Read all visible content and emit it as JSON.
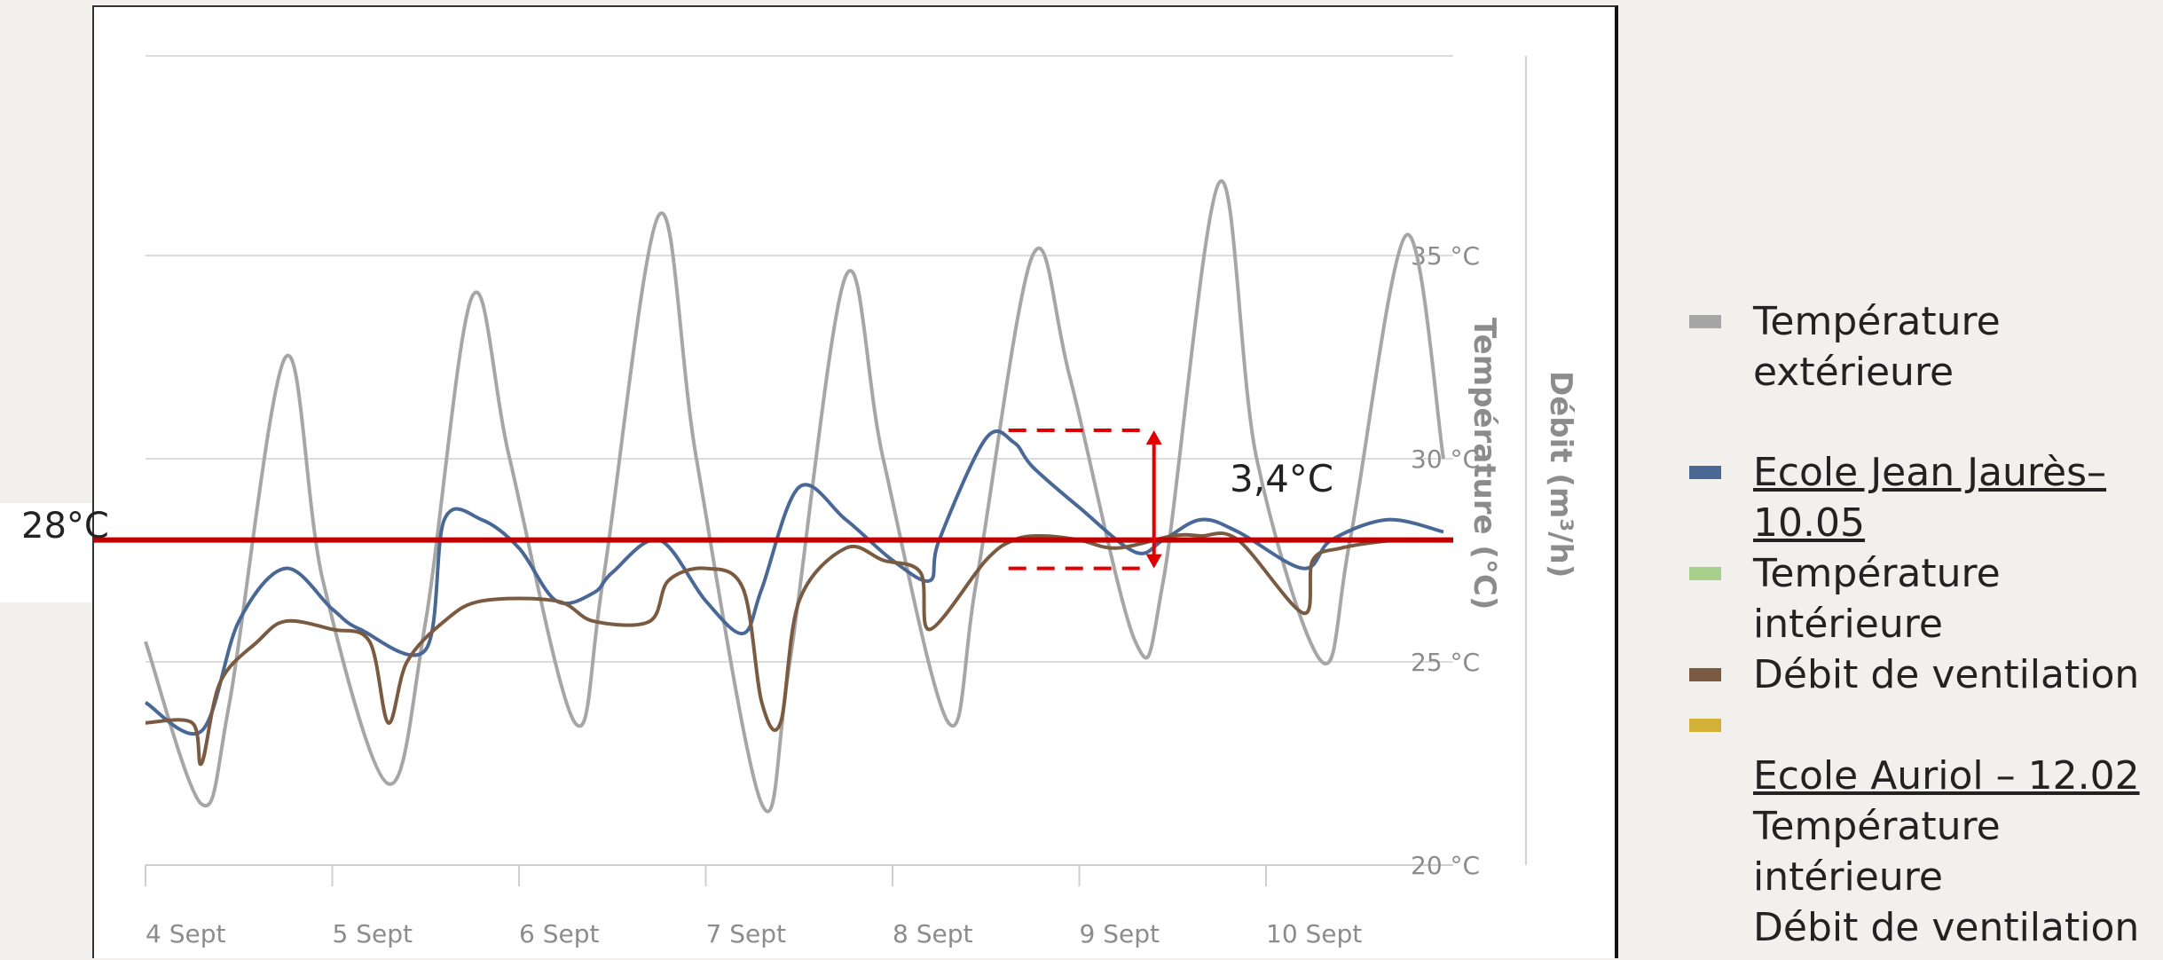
{
  "chart_data": {
    "type": "line",
    "title": "",
    "xlabel": "",
    "ylabel": "Température (°C)",
    "y2label": "Débit (m³/h)",
    "x_range": [
      "4 Sept",
      "10 Sept"
    ],
    "ylim": [
      20,
      39
    ],
    "grid": true,
    "x_ticks": [
      "4 Sept",
      "5 Sept",
      "6 Sept",
      "7 Sept",
      "8 Sept",
      "9 Sept",
      "10 Sept"
    ],
    "y_ticks": [
      {
        "value": 35,
        "label": "35 °C"
      },
      {
        "value": 30,
        "label": "30 °C"
      },
      {
        "value": 25,
        "label": "25 °C"
      },
      {
        "value": 20,
        "label": "20 °C"
      }
    ],
    "reference_line": {
      "value": 28,
      "label": "28°C",
      "color": "#c00000"
    },
    "annotation": {
      "label": "3,4°C",
      "from": 27.3,
      "to": 30.7,
      "x": 5.4,
      "color": "#e00000"
    },
    "series": [
      {
        "color": "#a6a6a6",
        "x": [
          0,
          0.3,
          0.45,
          0.75,
          0.95,
          1.3,
          1.5,
          1.75,
          1.95,
          2.3,
          2.45,
          2.75,
          2.95,
          3.3,
          3.45,
          3.75,
          3.95,
          4.3,
          4.45,
          4.75,
          4.95,
          5.3,
          5.45,
          5.75,
          5.95,
          6.3,
          6.45,
          6.75,
          6.95
        ],
        "y": [
          25.5,
          21.5,
          24,
          32.5,
          27,
          22,
          26,
          34,
          30,
          23.5,
          27,
          36,
          30,
          21.5,
          25,
          34.5,
          30,
          23.5,
          27,
          35,
          32,
          25.5,
          27,
          36.8,
          30,
          25,
          28,
          35.5,
          30
        ]
      },
      {
        "color": "#4a6896",
        "x": [
          0,
          0.3,
          0.5,
          0.75,
          1,
          1.15,
          1.5,
          1.6,
          1.8,
          2,
          2.2,
          2.4,
          2.5,
          2.75,
          3,
          3.2,
          3.3,
          3.5,
          3.75,
          4,
          4.2,
          4.25,
          4.5,
          4.65,
          4.75,
          5,
          5.3,
          5.45,
          5.65,
          5.85,
          6.2,
          6.35,
          6.65,
          6.95
        ],
        "y": [
          24,
          23.3,
          26,
          27.3,
          26.3,
          25.8,
          25.3,
          28.5,
          28.5,
          27.8,
          26.5,
          26.7,
          27.2,
          28,
          26.5,
          25.7,
          26.8,
          29.3,
          28.5,
          27.5,
          27,
          28,
          30.5,
          30.4,
          29.8,
          28.8,
          27.7,
          28,
          28.5,
          28.2,
          27.3,
          28,
          28.5,
          28.2
        ]
      },
      {
        "color": "#7a5a40",
        "x": [
          0,
          0.25,
          0.3,
          0.4,
          0.6,
          0.75,
          1,
          1.2,
          1.3,
          1.4,
          1.6,
          1.8,
          2.2,
          2.4,
          2.7,
          2.8,
          3,
          3.2,
          3.3,
          3.4,
          3.5,
          3.75,
          3.95,
          4.15,
          4.2,
          4.5,
          4.65,
          4.8,
          5,
          5.2,
          5.5,
          5.65,
          5.85,
          6.2,
          6.25,
          6.4,
          6.7,
          6.95
        ],
        "y": [
          23.5,
          23.5,
          22.5,
          24.5,
          25.5,
          26,
          25.8,
          25.5,
          23.5,
          25,
          26,
          26.5,
          26.5,
          26,
          26,
          27,
          27.3,
          26.8,
          24,
          23.5,
          26.5,
          27.8,
          27.5,
          27.2,
          25.8,
          27.5,
          28,
          28.1,
          28,
          27.8,
          28.1,
          28.1,
          28,
          26.2,
          27.5,
          27.8,
          28,
          28
        ]
      }
    ]
  },
  "labels": {
    "ref_line": "28°C",
    "annotation": "3,4°C"
  },
  "legend": {
    "items": [
      {
        "color": "#a6a6a6",
        "text": "Température extérieure"
      },
      {
        "color": "#4a6896",
        "text": "Ecole Jean Jaurès–10.05",
        "underline": true
      },
      {
        "color": "#a8d08d",
        "text": "Température intérieure"
      },
      {
        "color": "#7a5a40",
        "text": "Débit de ventilation"
      },
      {
        "color": "#d4b23a",
        "text": ""
      },
      {
        "text": "Ecole Auriol – 12.02",
        "underline": true
      },
      {
        "text": "Température intérieure"
      },
      {
        "text": "Débit de ventilation"
      }
    ]
  }
}
